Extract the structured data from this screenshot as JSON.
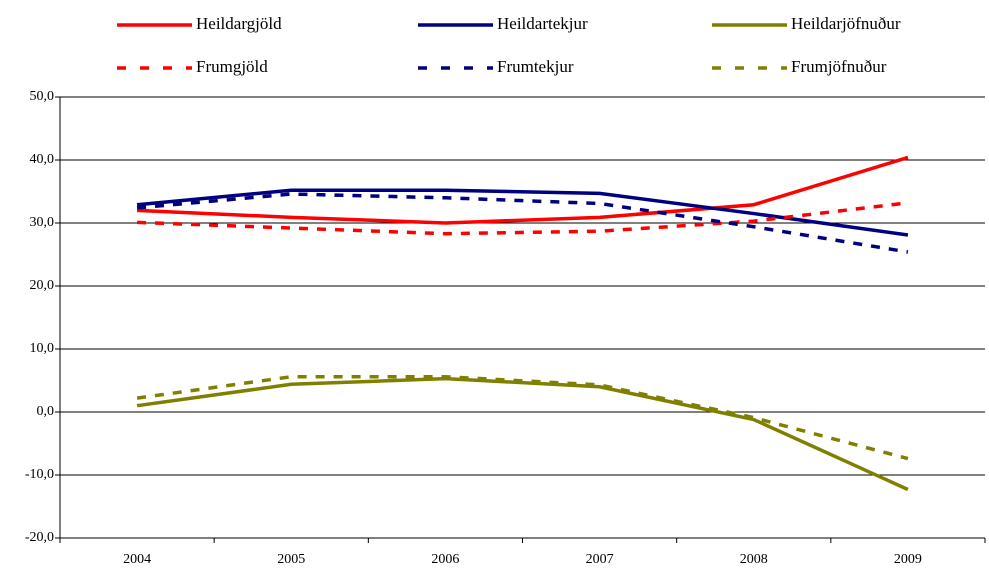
{
  "chart_data": {
    "type": "line",
    "categories": [
      "2004",
      "2005",
      "2006",
      "2007",
      "2008",
      "2009"
    ],
    "series": [
      {
        "name": "Heildargjöld",
        "color": "#ff0000",
        "style": "solid",
        "values": [
          32.0,
          30.9,
          30.0,
          30.9,
          32.9,
          40.4
        ]
      },
      {
        "name": "Heildartekjur",
        "color": "#000080",
        "style": "solid",
        "values": [
          32.9,
          35.2,
          35.2,
          34.7,
          31.5,
          28.1
        ]
      },
      {
        "name": "Heildarjöfnuður",
        "color": "#808000",
        "style": "solid",
        "values": [
          1.0,
          4.4,
          5.3,
          4.0,
          -1.2,
          -12.3
        ]
      },
      {
        "name": "Frumgjöld",
        "color": "#ff0000",
        "style": "dashed",
        "values": [
          30.1,
          29.2,
          28.3,
          28.7,
          30.3,
          33.2
        ]
      },
      {
        "name": "Frumtekjur",
        "color": "#000080",
        "style": "dashed",
        "values": [
          32.4,
          34.6,
          34.0,
          33.1,
          29.4,
          25.4
        ]
      },
      {
        "name": "Frumjöfnuður",
        "color": "#808000",
        "style": "dashed",
        "values": [
          2.2,
          5.6,
          5.6,
          4.3,
          -0.9,
          -7.4
        ]
      }
    ],
    "ylim": [
      -20,
      50
    ],
    "yticks": [
      {
        "value": -20,
        "label": "-20,0"
      },
      {
        "value": -10,
        "label": "-10,0"
      },
      {
        "value": 0,
        "label": "0,0"
      },
      {
        "value": 10,
        "label": "10,0"
      },
      {
        "value": 20,
        "label": "20,0"
      },
      {
        "value": 30,
        "label": "30,0"
      },
      {
        "value": 40,
        "label": "40,0"
      },
      {
        "value": 50,
        "label": "50,0"
      }
    ],
    "grid": true,
    "legend": "top"
  }
}
